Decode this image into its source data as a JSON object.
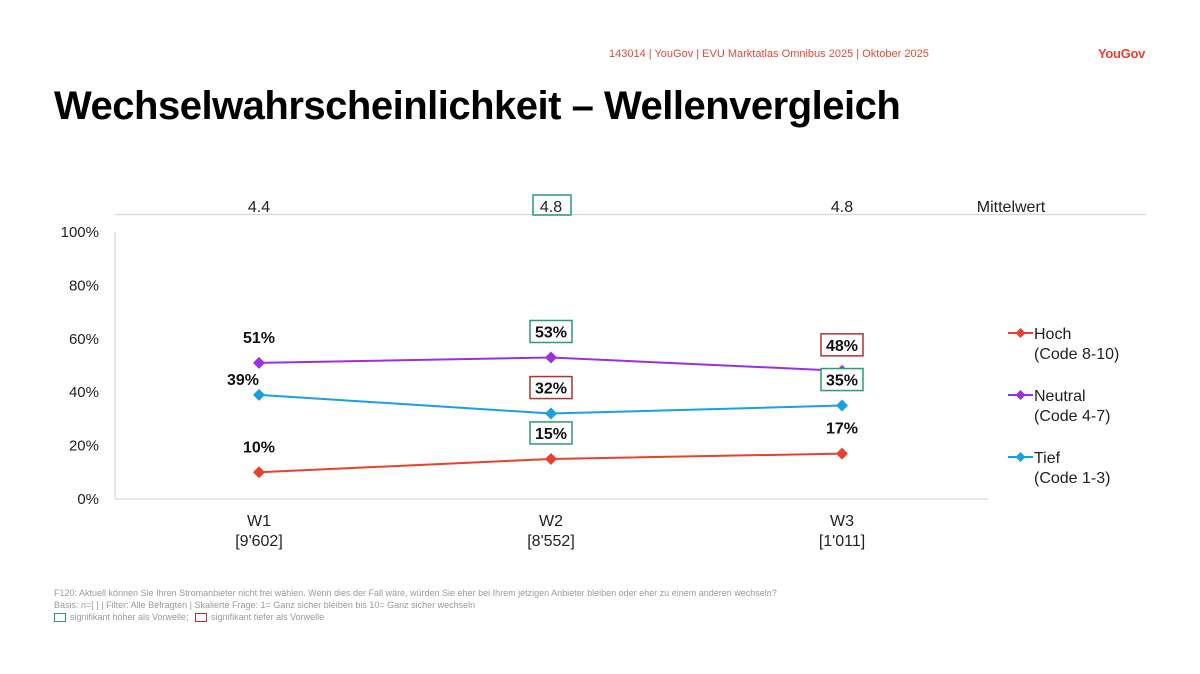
{
  "header": {
    "source": "143014 | YouGov | EVU Marktatlas Omnibus 2025 | Oktober 2025",
    "logo": "YouGov"
  },
  "title": "Wechselwahrscheinlichkeit – Wellenvergleich",
  "colors": {
    "hoch": "#e8412c",
    "neutral": "#9b30e0",
    "tief": "#1aa0e0",
    "sig_high": "#2f9a74",
    "sig_low": "#a93636"
  },
  "chart_data": {
    "type": "line",
    "title": "Wechselwahrscheinlichkeit – Wellenvergleich",
    "categories": [
      "W1",
      "W2",
      "W3"
    ],
    "category_n": [
      "[9'602]",
      "[8'552]",
      "[1'011]"
    ],
    "ylim": [
      0,
      100
    ],
    "yticks": [
      0,
      20,
      40,
      60,
      80,
      100
    ],
    "ytick_labels": [
      "0%",
      "20%",
      "40%",
      "60%",
      "80%",
      "100%"
    ],
    "grid": false,
    "legend_position": "right",
    "mean_row": {
      "label": "Mittelwert",
      "values": [
        "4.4",
        "4.8",
        "4.8"
      ],
      "significance": [
        "none",
        "high",
        "none"
      ]
    },
    "series": [
      {
        "key": "hoch",
        "name": "Hoch",
        "sub": "(Code 8-10)",
        "values": [
          10,
          15,
          17
        ],
        "labels": [
          "10%",
          "15%",
          "17%"
        ],
        "significance": [
          "none",
          "high",
          "none"
        ]
      },
      {
        "key": "neutral",
        "name": "Neutral",
        "sub": "(Code 4-7)",
        "values": [
          51,
          53,
          48
        ],
        "labels": [
          "51%",
          "53%",
          "48%"
        ],
        "significance": [
          "none",
          "high",
          "low"
        ]
      },
      {
        "key": "tief",
        "name": "Tief",
        "sub": "(Code 1-3)",
        "values": [
          39,
          32,
          35
        ],
        "labels": [
          "39%",
          "32%",
          "35%"
        ],
        "significance": [
          "none",
          "low",
          "high"
        ]
      }
    ]
  },
  "footer": {
    "question": "F120: Aktuell können Sie Ihren Stromanbieter nicht frei wählen. Wenn dies der Fall wäre, würden Sie eher bei Ihrem jetzigen Anbieter bleiben oder eher zu einem anderen wechseln?",
    "basis": "Basis: n=[ ] | Filter: Alle Befragten | Skalierte Frage: 1= Ganz sicher bleiben bis 10= Ganz sicher wechseln",
    "legend_high": "signifikant höher als Vorwelle;",
    "legend_low": "signifikant tiefer als Vorwelle"
  }
}
